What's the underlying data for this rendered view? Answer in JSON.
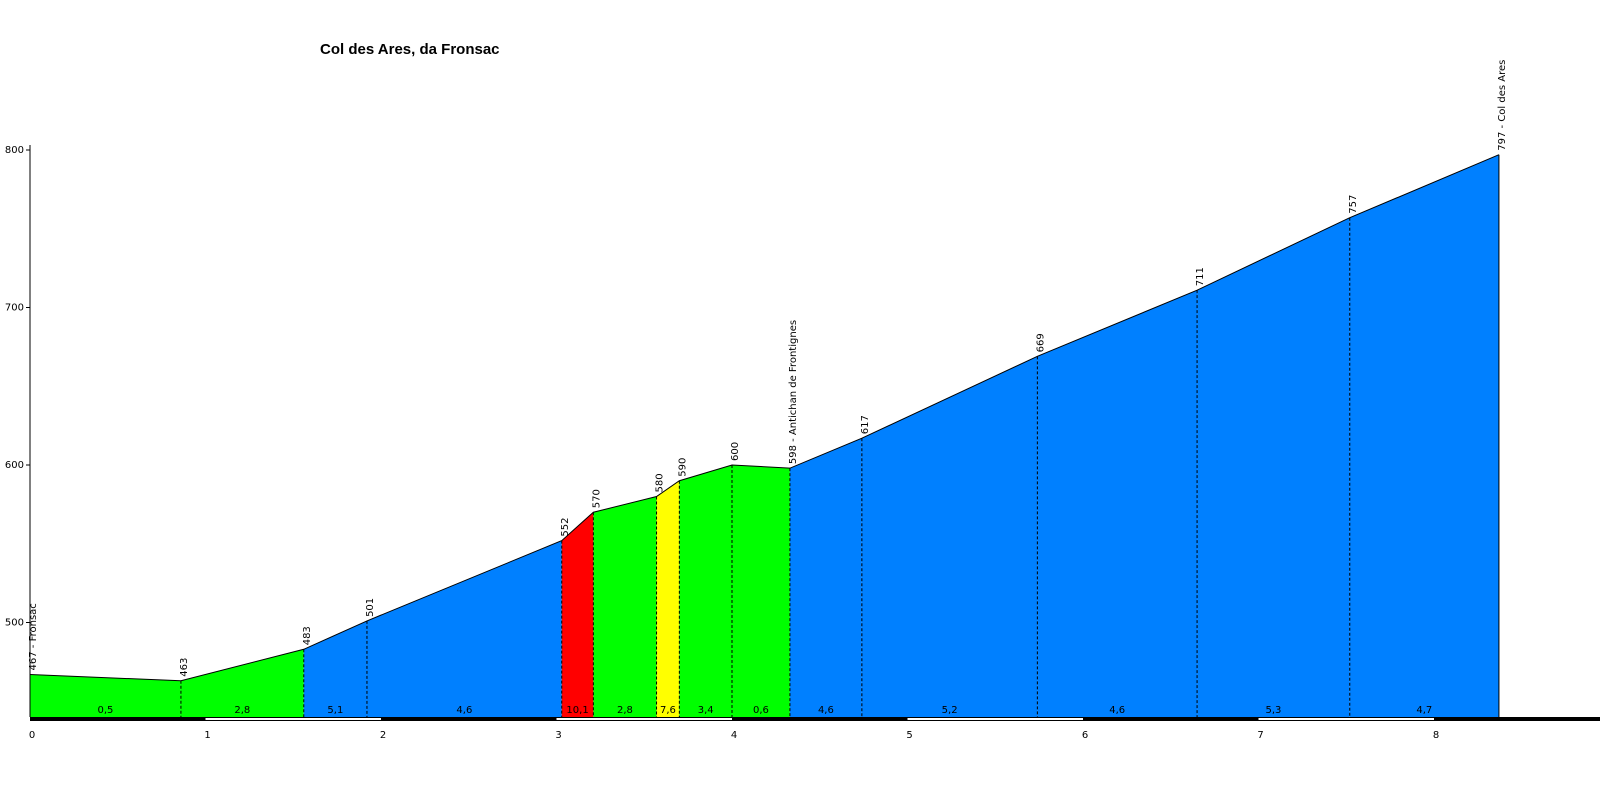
{
  "chart_data": {
    "type": "area",
    "title": "Col des Ares, da Fronsac",
    "xlabel": "",
    "ylabel": "",
    "xlim": [
      0,
      8.7
    ],
    "ylim": [
      440,
      800
    ],
    "x_ticks": [
      0,
      1,
      2,
      3,
      4,
      5,
      6,
      7,
      8
    ],
    "y_ticks": [
      500,
      600,
      700,
      800
    ],
    "grid": false,
    "points": [
      {
        "km": 0.0,
        "alt": 467,
        "label": "467 - Fronsac"
      },
      {
        "km": 0.86,
        "alt": 463,
        "label": "463"
      },
      {
        "km": 1.56,
        "alt": 483,
        "label": "483"
      },
      {
        "km": 1.92,
        "alt": 501,
        "label": "501"
      },
      {
        "km": 3.03,
        "alt": 552,
        "label": "552"
      },
      {
        "km": 3.21,
        "alt": 570,
        "label": "570"
      },
      {
        "km": 3.57,
        "alt": 580,
        "label": "580"
      },
      {
        "km": 3.7,
        "alt": 590,
        "label": "590"
      },
      {
        "km": 4.0,
        "alt": 600,
        "label": "600"
      },
      {
        "km": 4.33,
        "alt": 598,
        "label": "598 - Antichan de Frontignes"
      },
      {
        "km": 4.74,
        "alt": 617,
        "label": "617"
      },
      {
        "km": 5.74,
        "alt": 669,
        "label": "669"
      },
      {
        "km": 6.65,
        "alt": 711,
        "label": "711"
      },
      {
        "km": 7.52,
        "alt": 757,
        "label": "757"
      },
      {
        "km": 8.37,
        "alt": 797,
        "label": "797 - Col des Ares"
      }
    ],
    "segments": [
      {
        "grade": "0,5",
        "color": "#00ff00"
      },
      {
        "grade": "2,8",
        "color": "#00ff00"
      },
      {
        "grade": "5,1",
        "color": "#0080ff"
      },
      {
        "grade": "4,6",
        "color": "#0080ff"
      },
      {
        "grade": "10,1",
        "color": "#ff0000"
      },
      {
        "grade": "2,8",
        "color": "#00ff00"
      },
      {
        "grade": "7,6",
        "color": "#ffff00"
      },
      {
        "grade": "3,4",
        "color": "#00ff00"
      },
      {
        "grade": "0,6",
        "color": "#00ff00"
      },
      {
        "grade": "4,6",
        "color": "#0080ff"
      },
      {
        "grade": "5,2",
        "color": "#0080ff"
      },
      {
        "grade": "4,6",
        "color": "#0080ff"
      },
      {
        "grade": "5,3",
        "color": "#0080ff"
      },
      {
        "grade": "4,7",
        "color": "#0080ff"
      }
    ]
  }
}
